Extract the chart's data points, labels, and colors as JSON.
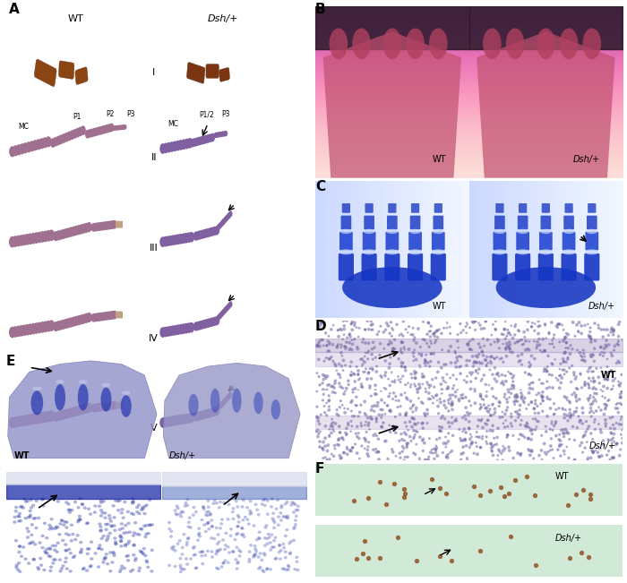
{
  "fig_width": 7.0,
  "fig_height": 6.51,
  "bg_color": "#ffffff",
  "panel_label_fontsize": 11,
  "panel_A": {
    "wt_label": "WT",
    "dsh_label": "Dsh/+",
    "row_labels": [
      "I",
      "II",
      "III",
      "IV",
      "V"
    ],
    "bone_color_wt": "#a07090",
    "bone_color_dsh": "#8060a0",
    "claw_color": "#c0a080",
    "small_bone_color": "#8B4513"
  },
  "panel_B": {
    "wt_label": "WT",
    "dsh_label": "Dsh/+",
    "fur_color": "#2a1a2a",
    "paw_color": "#c05070",
    "toe_color": "#b04060"
  },
  "panel_C": {
    "wt_label": "WT",
    "dsh_label": "Dsh/+",
    "bone_dark": "#1030c0",
    "bone_mid": "#1535c5",
    "bone_light": "#1a3dcf",
    "joint_color": "#c8d8f8"
  },
  "panel_D": {
    "wt_label": "WT",
    "dsh_label": "Dsh/+",
    "bg_wt": "#d8c8e8",
    "bg_dsh": "#e0d0f0",
    "dot_color": "#7060a0"
  },
  "panel_E": {
    "wt_label": "WT",
    "dsh_label": "Dsh/+",
    "bud_color_wt": "#9090c8",
    "bud_color_dsh": "#9898c8",
    "dig_color_wt": "#2535b0",
    "dig_color_dsh": "#3545b8",
    "bg_color": "#c8cce8",
    "close_bg": "#b8bce0",
    "aer_wt": "#1020a0",
    "aer_dsh": "#3050b0"
  },
  "panel_F": {
    "wt_label": "WT",
    "dsh_label": "Dsh/+",
    "bg_color": "#c8e8d8",
    "dot_color": "#8B4513"
  }
}
